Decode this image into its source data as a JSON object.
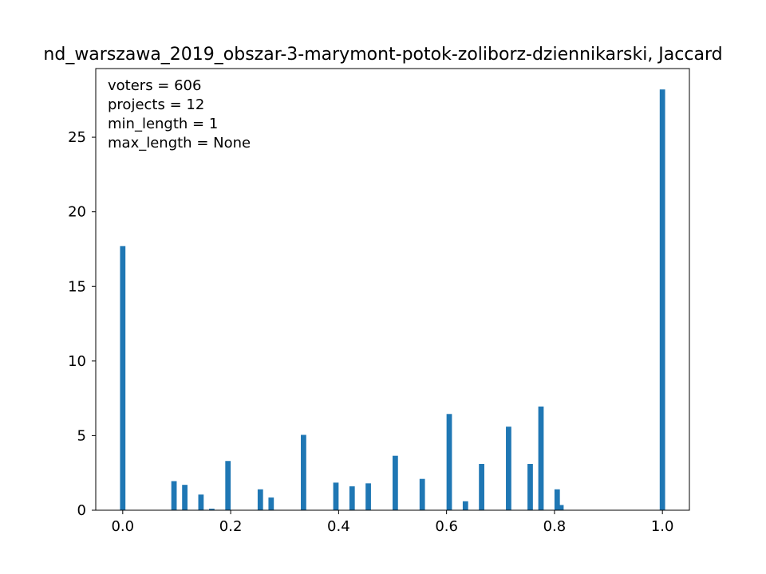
{
  "chart_data": {
    "type": "bar",
    "title": "nd_warszawa_2019_obszar-3-marymont-potok-zoliborz-dziennikarski, Jaccard",
    "xlabel": "",
    "ylabel": "",
    "xlim": [
      -0.05,
      1.05
    ],
    "ylim": [
      0,
      29.6
    ],
    "bar_width": 0.01,
    "bar_color": "#1f77b4",
    "xticks": [
      0.0,
      0.2,
      0.4,
      0.6,
      0.8,
      1.0
    ],
    "xtick_labels": [
      "0.0",
      "0.2",
      "0.4",
      "0.6",
      "0.8",
      "1.0"
    ],
    "yticks": [
      0,
      5,
      10,
      15,
      20,
      25
    ],
    "ytick_labels": [
      "0",
      "5",
      "10",
      "15",
      "20",
      "25"
    ],
    "grid": false,
    "annotations": [
      "voters = 606",
      "projects = 12",
      "min_length = 1",
      "max_length = None"
    ],
    "x": [
      0.0,
      0.095,
      0.115,
      0.145,
      0.165,
      0.195,
      0.255,
      0.275,
      0.335,
      0.395,
      0.425,
      0.455,
      0.505,
      0.555,
      0.605,
      0.635,
      0.665,
      0.715,
      0.755,
      0.775,
      0.805,
      0.812,
      1.0
    ],
    "values": [
      17.7,
      1.95,
      1.7,
      1.05,
      0.1,
      3.3,
      1.4,
      0.85,
      5.05,
      1.85,
      1.6,
      1.8,
      3.65,
      2.1,
      6.45,
      0.6,
      3.1,
      5.6,
      3.1,
      6.95,
      1.4,
      0.35,
      28.2
    ]
  }
}
